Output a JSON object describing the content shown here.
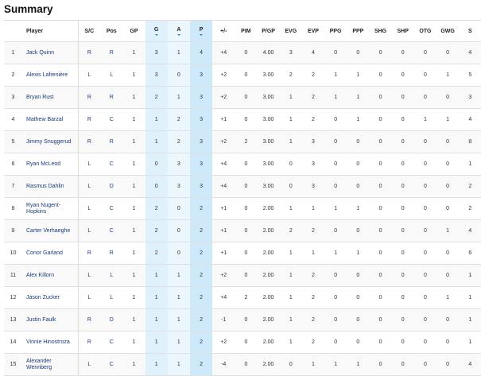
{
  "title": "Summary",
  "columns": [
    {
      "key": "rank",
      "label": ""
    },
    {
      "key": "player",
      "label": "Player"
    },
    {
      "key": "sc",
      "label": "S/C"
    },
    {
      "key": "pos",
      "label": "Pos"
    },
    {
      "key": "gp",
      "label": "GP"
    },
    {
      "key": "g",
      "label": "G",
      "sorted": true
    },
    {
      "key": "a",
      "label": "A",
      "sorted": true
    },
    {
      "key": "p",
      "label": "P",
      "sorted": true
    },
    {
      "key": "pm",
      "label": "+/-"
    },
    {
      "key": "pim",
      "label": "PIM"
    },
    {
      "key": "pgp",
      "label": "P/GP"
    },
    {
      "key": "evg",
      "label": "EVG"
    },
    {
      "key": "evp",
      "label": "EVP"
    },
    {
      "key": "ppg",
      "label": "PPG"
    },
    {
      "key": "ppp",
      "label": "PPP"
    },
    {
      "key": "shg",
      "label": "SHG"
    },
    {
      "key": "shp",
      "label": "SHP"
    },
    {
      "key": "otg",
      "label": "OTG"
    },
    {
      "key": "gwg",
      "label": "GWG"
    },
    {
      "key": "s",
      "label": "S"
    }
  ],
  "rows": [
    [
      "1",
      "Jack Quinn",
      "R",
      "R",
      "1",
      "3",
      "1",
      "4",
      "+4",
      "0",
      "4.00",
      "3",
      "4",
      "0",
      "0",
      "0",
      "0",
      "0",
      "0",
      "4"
    ],
    [
      "2",
      "Alexis Lafrenière",
      "L",
      "L",
      "1",
      "3",
      "0",
      "3",
      "+2",
      "0",
      "3.00",
      "2",
      "2",
      "1",
      "1",
      "0",
      "0",
      "0",
      "1",
      "5"
    ],
    [
      "3",
      "Bryan Rust",
      "R",
      "R",
      "1",
      "2",
      "1",
      "3",
      "+2",
      "0",
      "3.00",
      "1",
      "2",
      "1",
      "1",
      "0",
      "0",
      "0",
      "0",
      "3"
    ],
    [
      "4",
      "Mathew Barzal",
      "R",
      "C",
      "1",
      "1",
      "2",
      "3",
      "+1",
      "0",
      "3.00",
      "1",
      "2",
      "0",
      "1",
      "0",
      "0",
      "1",
      "1",
      "4"
    ],
    [
      "5",
      "Jimmy Snuggerud",
      "R",
      "R",
      "1",
      "1",
      "2",
      "3",
      "+2",
      "2",
      "3.00",
      "1",
      "3",
      "0",
      "0",
      "0",
      "0",
      "0",
      "0",
      "8"
    ],
    [
      "6",
      "Ryan McLeod",
      "L",
      "C",
      "1",
      "0",
      "3",
      "3",
      "+4",
      "0",
      "3.00",
      "0",
      "3",
      "0",
      "0",
      "0",
      "0",
      "0",
      "0",
      "1"
    ],
    [
      "7",
      "Rasmus Dahlin",
      "L",
      "D",
      "1",
      "0",
      "3",
      "3",
      "+4",
      "0",
      "3.00",
      "0",
      "3",
      "0",
      "0",
      "0",
      "0",
      "0",
      "0",
      "2"
    ],
    [
      "8",
      "Ryan Nugent-Hopkins",
      "L",
      "C",
      "1",
      "2",
      "0",
      "2",
      "+1",
      "0",
      "2.00",
      "1",
      "1",
      "1",
      "1",
      "0",
      "0",
      "0",
      "0",
      "2"
    ],
    [
      "9",
      "Carter Verhaeghe",
      "L",
      "C",
      "1",
      "2",
      "0",
      "2",
      "+1",
      "0",
      "2.00",
      "2",
      "2",
      "0",
      "0",
      "0",
      "0",
      "0",
      "1",
      "4"
    ],
    [
      "10",
      "Conor Garland",
      "R",
      "R",
      "1",
      "2",
      "0",
      "2",
      "+1",
      "0",
      "2.00",
      "1",
      "1",
      "1",
      "1",
      "0",
      "0",
      "0",
      "0",
      "6"
    ],
    [
      "11",
      "Alex Killorn",
      "L",
      "L",
      "1",
      "1",
      "1",
      "2",
      "+2",
      "0",
      "2.00",
      "1",
      "2",
      "0",
      "0",
      "0",
      "0",
      "0",
      "0",
      "1"
    ],
    [
      "12",
      "Jason Zucker",
      "L",
      "L",
      "1",
      "1",
      "1",
      "2",
      "+4",
      "2",
      "2.00",
      "1",
      "2",
      "0",
      "0",
      "0",
      "0",
      "0",
      "1",
      "1"
    ],
    [
      "13",
      "Justin Faulk",
      "R",
      "D",
      "1",
      "1",
      "1",
      "2",
      "-1",
      "0",
      "2.00",
      "1",
      "2",
      "0",
      "0",
      "0",
      "0",
      "0",
      "0",
      "1"
    ],
    [
      "14",
      "Vinnie Hinostroza",
      "R",
      "C",
      "1",
      "1",
      "1",
      "2",
      "+2",
      "0",
      "2.00",
      "1",
      "2",
      "0",
      "0",
      "0",
      "0",
      "0",
      "0",
      "1"
    ],
    [
      "15",
      "Alexander Wennberg",
      "L",
      "C",
      "1",
      "1",
      "1",
      "2",
      "-4",
      "0",
      "2.00",
      "0",
      "1",
      "1",
      "1",
      "0",
      "0",
      "0",
      "0",
      "4"
    ]
  ]
}
